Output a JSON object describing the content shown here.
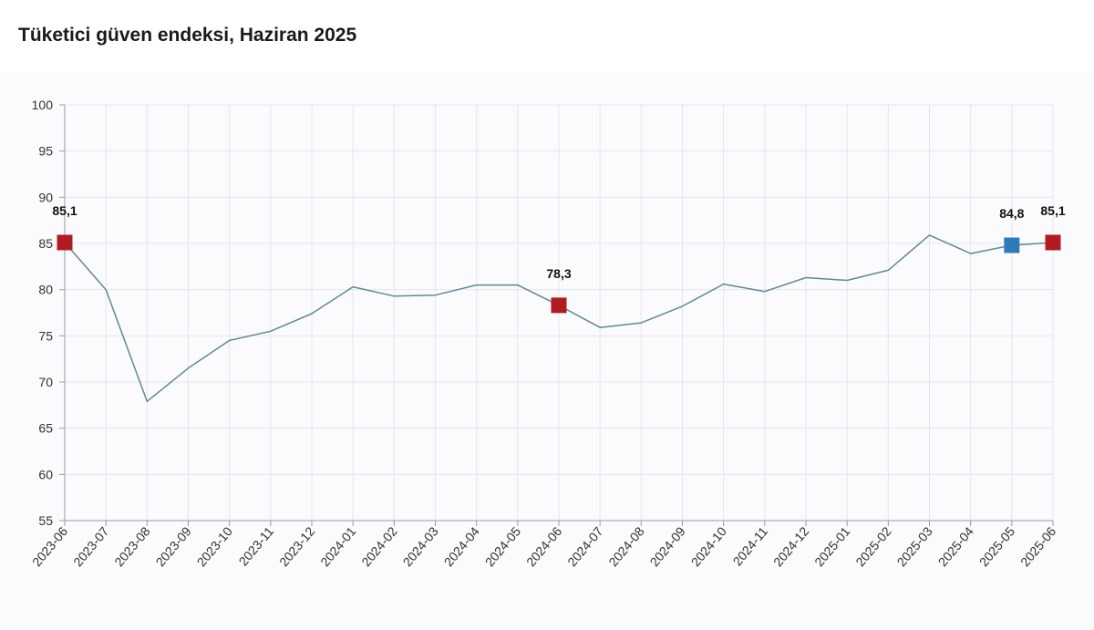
{
  "page": {
    "title": "Tüketici güven endeksi, Haziran 2025"
  },
  "colors": {
    "line": "#5e8a94",
    "grid": "#e4e4ee",
    "axis": "#9a9aa8",
    "highlight_red": "#b01c22",
    "highlight_blue": "#2f7ab8"
  },
  "chart_data": {
    "type": "line",
    "title": "Tüketici güven endeksi, Haziran 2025",
    "xlabel": "",
    "ylabel": "",
    "ylim": [
      55,
      100
    ],
    "yticks": [
      55,
      60,
      65,
      70,
      75,
      80,
      85,
      90,
      95,
      100
    ],
    "grid": true,
    "categories": [
      "2023-06",
      "2023-07",
      "2023-08",
      "2023-09",
      "2023-10",
      "2023-11",
      "2023-12",
      "2024-01",
      "2024-02",
      "2024-03",
      "2024-04",
      "2024-05",
      "2024-06",
      "2024-07",
      "2024-08",
      "2024-09",
      "2024-10",
      "2024-11",
      "2024-12",
      "2025-01",
      "2025-02",
      "2025-03",
      "2025-04",
      "2025-05",
      "2025-06"
    ],
    "series": [
      {
        "name": "Tüketici güven endeksi",
        "values": [
          85.1,
          80.0,
          67.9,
          71.5,
          74.5,
          75.5,
          77.4,
          80.3,
          79.3,
          79.4,
          80.5,
          80.5,
          78.3,
          75.9,
          76.4,
          78.2,
          80.6,
          79.8,
          81.3,
          81.0,
          82.1,
          85.9,
          83.9,
          84.8,
          85.1
        ]
      }
    ],
    "annotations": [
      {
        "index": 0,
        "label": "85,1",
        "color": "red"
      },
      {
        "index": 12,
        "label": "78,3",
        "color": "red"
      },
      {
        "index": 23,
        "label": "84,8",
        "color": "blue"
      },
      {
        "index": 24,
        "label": "85,1",
        "color": "red"
      }
    ]
  }
}
